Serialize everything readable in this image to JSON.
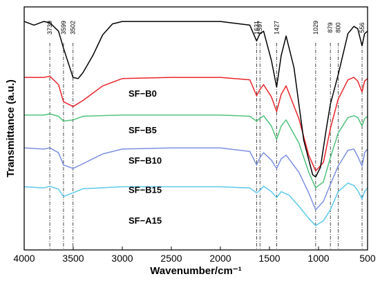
{
  "chart_data": {
    "type": "line",
    "xlabel": "Wavenumber/cm⁻¹",
    "ylabel": "Transmittance (a.u.)",
    "xlim": [
      4000,
      500
    ],
    "x_reversed": true,
    "x_ticks": [
      4000,
      3500,
      3000,
      2500,
      2000,
      1500,
      1000,
      500
    ],
    "y_ticks_shown": false,
    "grid": false,
    "legend": "none",
    "reference_lines": [
      {
        "x": 3739,
        "label": "3739"
      },
      {
        "x": 3599,
        "label": "3599"
      },
      {
        "x": 3502,
        "label": "3502"
      },
      {
        "x": 1631,
        "label": "1631"
      },
      {
        "x": 1597,
        "label": "1597"
      },
      {
        "x": 1427,
        "label": "1427"
      },
      {
        "x": 1029,
        "label": "1029"
      },
      {
        "x": 879,
        "label": "879"
      },
      {
        "x": 800,
        "label": "800"
      },
      {
        "x": 556,
        "label": "556"
      }
    ],
    "series": [
      {
        "name": "SF−B0",
        "color": "#5BC8EA",
        "points": [
          [
            4000,
            0.74
          ],
          [
            3800,
            0.745
          ],
          [
            3739,
            0.738
          ],
          [
            3650,
            0.75
          ],
          [
            3599,
            0.78
          ],
          [
            3502,
            0.765
          ],
          [
            3400,
            0.748
          ],
          [
            3000,
            0.74
          ],
          [
            2500,
            0.74
          ],
          [
            2000,
            0.74
          ],
          [
            1700,
            0.745
          ],
          [
            1631,
            0.765
          ],
          [
            1597,
            0.755
          ],
          [
            1560,
            0.738
          ],
          [
            1480,
            0.76
          ],
          [
            1427,
            0.785
          ],
          [
            1380,
            0.76
          ],
          [
            1300,
            0.775
          ],
          [
            1200,
            0.82
          ],
          [
            1100,
            0.87
          ],
          [
            1029,
            0.9
          ],
          [
            950,
            0.88
          ],
          [
            879,
            0.835
          ],
          [
            800,
            0.76
          ],
          [
            700,
            0.725
          ],
          [
            640,
            0.735
          ],
          [
            600,
            0.755
          ],
          [
            556,
            0.79
          ],
          [
            530,
            0.76
          ],
          [
            500,
            0.745
          ]
        ]
      },
      {
        "name": "SF−B5",
        "color": "#7B8FE0",
        "points": [
          [
            4000,
            0.58
          ],
          [
            3800,
            0.585
          ],
          [
            3739,
            0.58
          ],
          [
            3650,
            0.6
          ],
          [
            3599,
            0.65
          ],
          [
            3502,
            0.665
          ],
          [
            3400,
            0.645
          ],
          [
            3200,
            0.605
          ],
          [
            3000,
            0.585
          ],
          [
            2500,
            0.58
          ],
          [
            2000,
            0.58
          ],
          [
            1700,
            0.595
          ],
          [
            1631,
            0.65
          ],
          [
            1597,
            0.62
          ],
          [
            1560,
            0.6
          ],
          [
            1480,
            0.63
          ],
          [
            1427,
            0.665
          ],
          [
            1380,
            0.625
          ],
          [
            1330,
            0.61
          ],
          [
            1200,
            0.68
          ],
          [
            1100,
            0.765
          ],
          [
            1029,
            0.835
          ],
          [
            950,
            0.8
          ],
          [
            879,
            0.73
          ],
          [
            800,
            0.655
          ],
          [
            700,
            0.59
          ],
          [
            640,
            0.585
          ],
          [
            600,
            0.615
          ],
          [
            556,
            0.655
          ],
          [
            530,
            0.6
          ],
          [
            500,
            0.585
          ]
        ]
      },
      {
        "name": "SF−B10",
        "color": "#4EC27A",
        "points": [
          [
            4000,
            0.445
          ],
          [
            3800,
            0.445
          ],
          [
            3739,
            0.44
          ],
          [
            3650,
            0.45
          ],
          [
            3599,
            0.47
          ],
          [
            3502,
            0.465
          ],
          [
            3400,
            0.45
          ],
          [
            3000,
            0.445
          ],
          [
            2500,
            0.445
          ],
          [
            2000,
            0.445
          ],
          [
            1700,
            0.45
          ],
          [
            1631,
            0.47
          ],
          [
            1597,
            0.458
          ],
          [
            1560,
            0.448
          ],
          [
            1480,
            0.49
          ],
          [
            1427,
            0.545
          ],
          [
            1380,
            0.49
          ],
          [
            1330,
            0.465
          ],
          [
            1200,
            0.56
          ],
          [
            1100,
            0.68
          ],
          [
            1029,
            0.745
          ],
          [
            950,
            0.72
          ],
          [
            879,
            0.62
          ],
          [
            800,
            0.52
          ],
          [
            700,
            0.455
          ],
          [
            640,
            0.448
          ],
          [
            600,
            0.455
          ],
          [
            556,
            0.49
          ],
          [
            530,
            0.46
          ],
          [
            500,
            0.45
          ]
        ]
      },
      {
        "name": "SF−B15",
        "color": "#E8242A",
        "points": [
          [
            4000,
            0.29
          ],
          [
            3800,
            0.29
          ],
          [
            3739,
            0.285
          ],
          [
            3650,
            0.32
          ],
          [
            3599,
            0.39
          ],
          [
            3502,
            0.41
          ],
          [
            3400,
            0.385
          ],
          [
            3200,
            0.325
          ],
          [
            3000,
            0.295
          ],
          [
            2500,
            0.29
          ],
          [
            2000,
            0.29
          ],
          [
            1700,
            0.3
          ],
          [
            1631,
            0.365
          ],
          [
            1597,
            0.34
          ],
          [
            1560,
            0.32
          ],
          [
            1480,
            0.37
          ],
          [
            1427,
            0.43
          ],
          [
            1380,
            0.36
          ],
          [
            1330,
            0.325
          ],
          [
            1200,
            0.46
          ],
          [
            1100,
            0.61
          ],
          [
            1029,
            0.675
          ],
          [
            950,
            0.64
          ],
          [
            879,
            0.5
          ],
          [
            800,
            0.38
          ],
          [
            700,
            0.3
          ],
          [
            640,
            0.29
          ],
          [
            600,
            0.305
          ],
          [
            556,
            0.35
          ],
          [
            530,
            0.305
          ],
          [
            500,
            0.295
          ]
        ]
      },
      {
        "name": "SF−A15",
        "color": "#000000",
        "points": [
          [
            4000,
            0.06
          ],
          [
            3900,
            0.075
          ],
          [
            3800,
            0.06
          ],
          [
            3739,
            0.065
          ],
          [
            3650,
            0.1
          ],
          [
            3599,
            0.17
          ],
          [
            3502,
            0.29
          ],
          [
            3450,
            0.295
          ],
          [
            3400,
            0.27
          ],
          [
            3300,
            0.2
          ],
          [
            3200,
            0.115
          ],
          [
            3100,
            0.07
          ],
          [
            3000,
            0.06
          ],
          [
            2500,
            0.06
          ],
          [
            2000,
            0.06
          ],
          [
            1700,
            0.075
          ],
          [
            1631,
            0.14
          ],
          [
            1597,
            0.11
          ],
          [
            1560,
            0.1
          ],
          [
            1480,
            0.22
          ],
          [
            1427,
            0.33
          ],
          [
            1380,
            0.2
          ],
          [
            1330,
            0.12
          ],
          [
            1250,
            0.25
          ],
          [
            1150,
            0.55
          ],
          [
            1060,
            0.69
          ],
          [
            1029,
            0.7
          ],
          [
            980,
            0.66
          ],
          [
            920,
            0.5
          ],
          [
            879,
            0.4
          ],
          [
            800,
            0.28
          ],
          [
            700,
            0.11
          ],
          [
            640,
            0.08
          ],
          [
            600,
            0.09
          ],
          [
            556,
            0.16
          ],
          [
            530,
            0.11
          ],
          [
            500,
            0.1
          ]
        ]
      }
    ]
  }
}
